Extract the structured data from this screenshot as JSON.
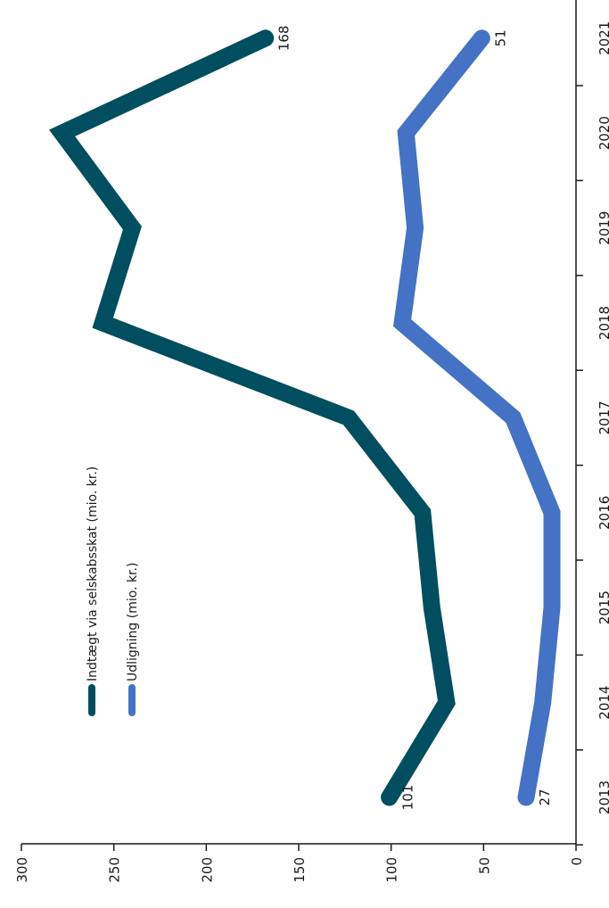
{
  "chart_data": {
    "type": "line",
    "orientation": "rotated-90",
    "title": "",
    "xlabel": "",
    "ylabel": "",
    "x": [
      "2013",
      "2014",
      "2015",
      "2016",
      "2017",
      "2018",
      "2019",
      "2020",
      "2021"
    ],
    "y_ticks": [
      "0",
      "50",
      "100",
      "150",
      "200",
      "250",
      "300"
    ],
    "ylim": [
      0,
      300
    ],
    "grid": false,
    "legend_position": "left-middle",
    "series": [
      {
        "name": "Indtægt via selskabsskat (mio. kr.)",
        "color": "#004e5f",
        "values": [
          101,
          70,
          78,
          83,
          123,
          256,
          240,
          278,
          168
        ],
        "end_labels": {
          "first": "101",
          "last": "168"
        }
      },
      {
        "name": "Udligning (mio. kr.)",
        "color": "#4472c4",
        "values": [
          27,
          18,
          13,
          13,
          34,
          94,
          87,
          92,
          51
        ],
        "end_labels": {
          "first": "27",
          "last": "51"
        }
      }
    ]
  }
}
